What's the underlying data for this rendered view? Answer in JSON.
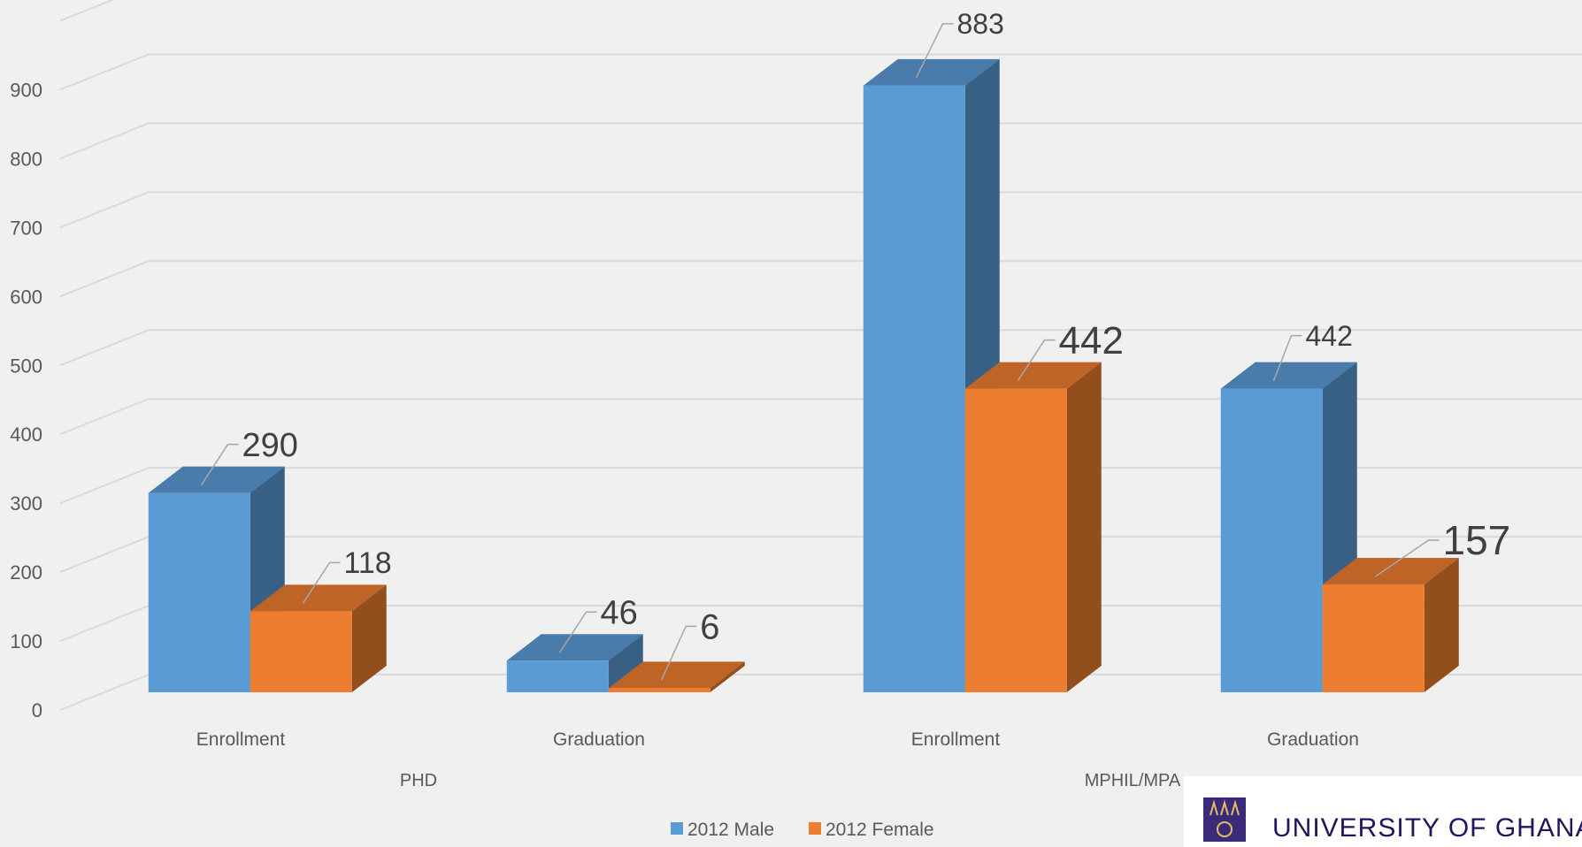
{
  "chart_data": {
    "type": "bar",
    "groups": [
      {
        "label": "PHD",
        "categories": [
          "Enrollment",
          "Graduation"
        ]
      },
      {
        "label": "MPHIL/MPA",
        "categories": [
          "Enrollment",
          "Graduation"
        ]
      }
    ],
    "categories": [
      "Enrollment",
      "Graduation",
      "Enrollment",
      "Graduation"
    ],
    "series": [
      {
        "name": "2012 Male",
        "color": "#5b9bd5",
        "values": [
          290,
          46,
          883,
          442
        ],
        "labels": [
          "290",
          "46",
          "883",
          "442"
        ]
      },
      {
        "name": "2012 Female",
        "color": "#ed7d31",
        "values": [
          118,
          6,
          442,
          157
        ],
        "labels": [
          "118",
          "6",
          "442",
          "157"
        ]
      }
    ],
    "yticks": [
      "0",
      "100",
      "200",
      "300",
      "400",
      "500",
      "600",
      "700",
      "800",
      "900"
    ],
    "ylim": [
      0,
      1000
    ],
    "grid": true,
    "legend_position": "bottom-center"
  },
  "logo": {
    "text": "UNIVERSITY OF GHANA",
    "emblem_color": "#3a2a7a"
  }
}
